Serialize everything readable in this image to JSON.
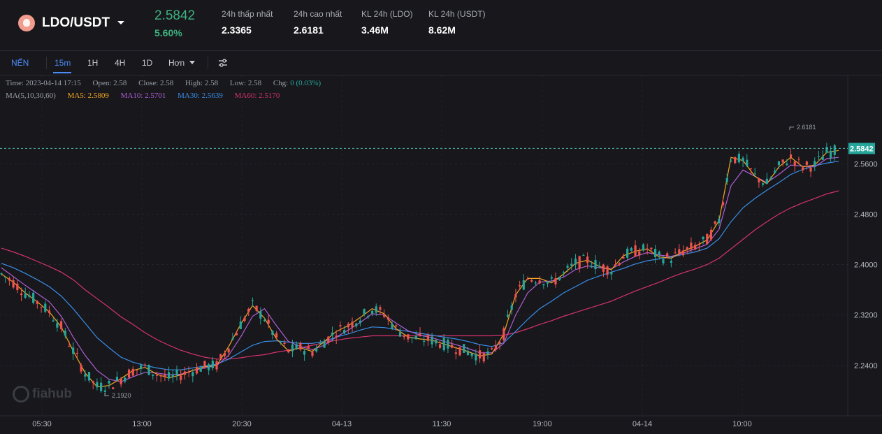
{
  "header": {
    "pair": "LDO/USDT",
    "price": "2.5842",
    "change_pct": "5.60%",
    "stats": [
      {
        "label": "24h thấp nhất",
        "value": "2.3365"
      },
      {
        "label": "24h cao nhất",
        "value": "2.6181"
      },
      {
        "label": "KL 24h (LDO)",
        "value": "3.46M"
      },
      {
        "label": "KL 24h (USDT)",
        "value": "8.62M"
      }
    ]
  },
  "toolbar": {
    "chart_type": "NẾN",
    "intervals": [
      "15m",
      "1H",
      "4H",
      "1D"
    ],
    "active_interval": "15m",
    "more_label": "Hơn",
    "settings_icon": "settings-sliders-icon"
  },
  "ohlc": {
    "time": "Time: 2023-04-14 17:15",
    "open": "Open: 2.58",
    "close": "Close: 2.58",
    "high": "High: 2.58",
    "low": "Low: 2.58",
    "chg_label": "Chg:",
    "chg_value": "0 (0.03%)"
  },
  "ma": {
    "label": "MA(5,10,30,60)",
    "ma5": "MA5: 2.5809",
    "ma10": "MA10: 2.5701",
    "ma30": "MA30: 2.5639",
    "ma60": "MA60: 2.5170"
  },
  "colors": {
    "up": "#26a69a",
    "down": "#ef5350",
    "ma5": "#f5a623",
    "ma10": "#b05fd6",
    "ma30": "#3a8ee6",
    "ma60": "#d6336c",
    "price_line": "#4db6ac"
  },
  "watermark": "fiahub",
  "chart_data": {
    "type": "line",
    "y_ticks": [
      "2.5600",
      "2.4800",
      "2.4000",
      "2.3200",
      "2.2400"
    ],
    "x_ticks": [
      "05:30",
      "13:00",
      "20:30",
      "04-13",
      "11:30",
      "19:00",
      "04-14",
      "10:00"
    ],
    "current_price": "2.5842",
    "high_marker": "2.6181",
    "low_marker": "2.1920",
    "ylim": [
      2.16,
      2.7
    ],
    "series": [
      {
        "name": "MA5",
        "values": [
          2.385,
          2.372,
          2.355,
          2.341,
          2.325,
          2.301,
          2.263,
          2.228,
          2.206,
          2.208,
          2.219,
          2.232,
          2.237,
          2.226,
          2.22,
          2.225,
          2.232,
          2.238,
          2.24,
          2.27,
          2.305,
          2.335,
          2.315,
          2.282,
          2.263,
          2.268,
          2.262,
          2.278,
          2.294,
          2.303,
          2.316,
          2.33,
          2.322,
          2.298,
          2.285,
          2.282,
          2.28,
          2.274,
          2.268,
          2.262,
          2.255,
          2.258,
          2.29,
          2.352,
          2.378,
          2.378,
          2.371,
          2.385,
          2.402,
          2.407,
          2.397,
          2.392,
          2.414,
          2.421,
          2.425,
          2.412,
          2.41,
          2.421,
          2.429,
          2.439,
          2.47,
          2.57,
          2.565,
          2.54,
          2.528,
          2.555,
          2.57,
          2.555,
          2.558,
          2.578,
          2.581
        ]
      },
      {
        "name": "MA10",
        "values": [
          2.395,
          2.381,
          2.367,
          2.354,
          2.341,
          2.318,
          2.285,
          2.256,
          2.232,
          2.218,
          2.214,
          2.222,
          2.229,
          2.228,
          2.225,
          2.226,
          2.232,
          2.236,
          2.24,
          2.256,
          2.285,
          2.318,
          2.33,
          2.303,
          2.278,
          2.27,
          2.265,
          2.272,
          2.285,
          2.296,
          2.308,
          2.322,
          2.32,
          2.307,
          2.295,
          2.288,
          2.284,
          2.278,
          2.273,
          2.267,
          2.26,
          2.26,
          2.275,
          2.32,
          2.355,
          2.372,
          2.374,
          2.38,
          2.392,
          2.398,
          2.395,
          2.393,
          2.404,
          2.413,
          2.419,
          2.415,
          2.413,
          2.418,
          2.425,
          2.432,
          2.456,
          2.525,
          2.55,
          2.54,
          2.53,
          2.543,
          2.558,
          2.556,
          2.555,
          2.568,
          2.57
        ]
      },
      {
        "name": "MA30",
        "values": [
          2.402,
          2.395,
          2.386,
          2.376,
          2.365,
          2.35,
          2.33,
          2.307,
          2.284,
          2.268,
          2.253,
          2.245,
          2.24,
          2.236,
          2.233,
          2.233,
          2.236,
          2.239,
          2.242,
          2.25,
          2.261,
          2.272,
          2.278,
          2.279,
          2.277,
          2.275,
          2.275,
          2.278,
          2.285,
          2.29,
          2.296,
          2.301,
          2.3,
          2.297,
          2.294,
          2.291,
          2.288,
          2.285,
          2.282,
          2.278,
          2.273,
          2.27,
          2.276,
          2.294,
          2.313,
          2.33,
          2.342,
          2.355,
          2.365,
          2.375,
          2.382,
          2.388,
          2.394,
          2.401,
          2.406,
          2.409,
          2.412,
          2.416,
          2.42,
          2.426,
          2.441,
          2.468,
          2.49,
          2.505,
          2.518,
          2.53,
          2.543,
          2.551,
          2.557,
          2.561,
          2.564
        ]
      },
      {
        "name": "MA60",
        "values": [
          2.426,
          2.42,
          2.413,
          2.405,
          2.397,
          2.388,
          2.376,
          2.36,
          2.346,
          2.332,
          2.317,
          2.305,
          2.292,
          2.281,
          2.272,
          2.264,
          2.258,
          2.253,
          2.25,
          2.25,
          2.252,
          2.255,
          2.257,
          2.261,
          2.264,
          2.268,
          2.272,
          2.276,
          2.28,
          2.283,
          2.285,
          2.287,
          2.287,
          2.287,
          2.287,
          2.287,
          2.287,
          2.287,
          2.287,
          2.287,
          2.287,
          2.287,
          2.288,
          2.292,
          2.298,
          2.305,
          2.311,
          2.318,
          2.324,
          2.33,
          2.336,
          2.342,
          2.35,
          2.358,
          2.365,
          2.372,
          2.38,
          2.387,
          2.393,
          2.4,
          2.41,
          2.425,
          2.44,
          2.455,
          2.468,
          2.48,
          2.49,
          2.498,
          2.505,
          2.512,
          2.517
        ]
      }
    ]
  }
}
